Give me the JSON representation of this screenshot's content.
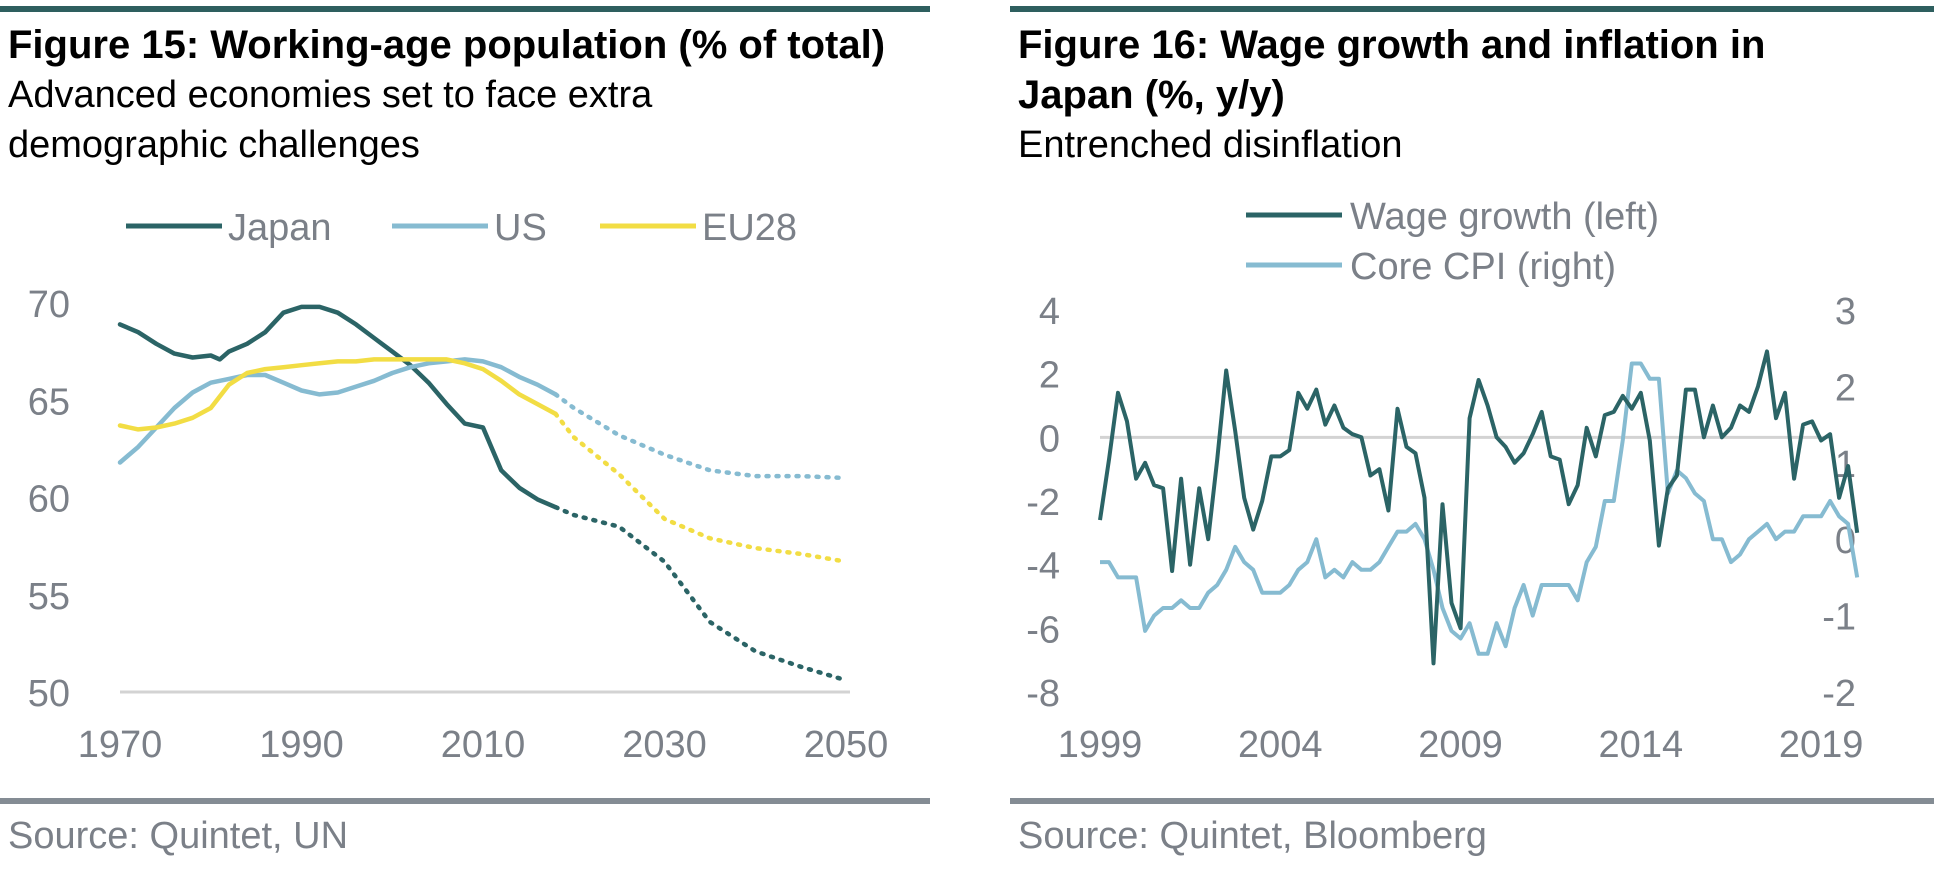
{
  "colors": {
    "japan": "#2b6466",
    "us": "#86bbd1",
    "eu28": "#f2dd44",
    "wage": "#2b6466",
    "cpi": "#86bbd1",
    "axis_text": "#7b8088",
    "zero_line": "#d3d3d3",
    "rule_top": "#2e5f5f",
    "rule_bottom": "#848c94"
  },
  "left": {
    "title": "Figure 15: Working-age population (% of total)",
    "subtitle_line1": "Advanced economies set to face extra",
    "subtitle_line2": "demographic challenges",
    "source": "Source: Quintet, UN"
  },
  "right": {
    "title_line1": "Figure 16: Wage growth and inflation in",
    "title_line2": "Japan (%, y/y)",
    "subtitle": "Entrenched disinflation",
    "source": "Source: Quintet, Bloomberg"
  },
  "chart_data": [
    {
      "type": "line",
      "title": "Figure 15: Working-age population (% of total)",
      "xlim": [
        1970,
        2050
      ],
      "ylim": [
        50,
        70
      ],
      "xticks": [
        "1970",
        "1990",
        "2010",
        "2030",
        "2050"
      ],
      "yticks": [
        "50",
        "55",
        "60",
        "65",
        "70"
      ],
      "legend": "top",
      "projection_from": 2018,
      "series": [
        {
          "name": "Japan",
          "x": [
            1970,
            1972,
            1974,
            1976,
            1978,
            1980,
            1981,
            1982,
            1984,
            1986,
            1988,
            1990,
            1992,
            1994,
            1996,
            1998,
            2000,
            2002,
            2004,
            2006,
            2008,
            2010,
            2012,
            2014,
            2016,
            2018,
            2020,
            2025,
            2030,
            2035,
            2040,
            2045,
            2050
          ],
          "y": [
            68.9,
            68.5,
            67.9,
            67.4,
            67.2,
            67.3,
            67.1,
            67.5,
            67.9,
            68.5,
            69.5,
            69.8,
            69.8,
            69.5,
            68.9,
            68.2,
            67.5,
            66.8,
            65.9,
            64.8,
            63.8,
            63.6,
            61.4,
            60.5,
            59.9,
            59.5,
            59.1,
            58.5,
            56.7,
            53.6,
            52.1,
            51.3,
            50.6
          ]
        },
        {
          "name": "US",
          "x": [
            1970,
            1972,
            1974,
            1976,
            1978,
            1980,
            1982,
            1984,
            1986,
            1988,
            1990,
            1992,
            1994,
            1996,
            1998,
            2000,
            2002,
            2004,
            2006,
            2008,
            2010,
            2012,
            2014,
            2016,
            2018,
            2020,
            2025,
            2030,
            2035,
            2040,
            2045,
            2050
          ],
          "y": [
            61.8,
            62.6,
            63.6,
            64.6,
            65.4,
            65.9,
            66.1,
            66.3,
            66.3,
            65.9,
            65.5,
            65.3,
            65.4,
            65.7,
            66.0,
            66.4,
            66.7,
            66.9,
            67.0,
            67.1,
            67.0,
            66.7,
            66.2,
            65.8,
            65.3,
            64.6,
            63.2,
            62.2,
            61.4,
            61.1,
            61.1,
            61.0
          ]
        },
        {
          "name": "EU28",
          "x": [
            1970,
            1972,
            1974,
            1976,
            1978,
            1980,
            1982,
            1984,
            1986,
            1988,
            1990,
            1992,
            1994,
            1996,
            1998,
            2000,
            2002,
            2004,
            2006,
            2008,
            2010,
            2012,
            2014,
            2016,
            2018,
            2020,
            2025,
            2030,
            2035,
            2040,
            2045,
            2050
          ],
          "y": [
            63.7,
            63.5,
            63.6,
            63.8,
            64.1,
            64.6,
            65.8,
            66.4,
            66.6,
            66.7,
            66.8,
            66.9,
            67.0,
            67.0,
            67.1,
            67.1,
            67.1,
            67.1,
            67.1,
            66.9,
            66.6,
            66.0,
            65.3,
            64.8,
            64.3,
            63.1,
            61.2,
            58.9,
            57.9,
            57.4,
            57.1,
            56.7
          ]
        }
      ]
    },
    {
      "type": "line",
      "title": "Figure 16: Wage growth and inflation in Japan (%, y/y)",
      "xlim": [
        1999,
        2020.8
      ],
      "ylim_left": [
        -8,
        4
      ],
      "ylim_right": [
        -2,
        3
      ],
      "xticks": [
        "1999",
        "2004",
        "2009",
        "2014",
        "2019"
      ],
      "yticks_left": [
        "4",
        "2",
        "0",
        "-2",
        "-4",
        "-6",
        "-8"
      ],
      "yticks_right": [
        "3",
        "2",
        "1",
        "0",
        "-1",
        "-2"
      ],
      "legend": "top",
      "zero_line": true,
      "series": [
        {
          "name": "Wage growth (left)",
          "axis": "left",
          "x": [
            1999.0,
            1999.25,
            1999.5,
            1999.75,
            2000.0,
            2000.25,
            2000.5,
            2000.75,
            2001.0,
            2001.25,
            2001.5,
            2001.75,
            2002.0,
            2002.25,
            2002.5,
            2002.75,
            2003.0,
            2003.25,
            2003.5,
            2003.75,
            2004.0,
            2004.25,
            2004.5,
            2004.75,
            2005.0,
            2005.25,
            2005.5,
            2005.75,
            2006.0,
            2006.25,
            2006.5,
            2006.75,
            2007.0,
            2007.25,
            2007.5,
            2007.75,
            2008.0,
            2008.25,
            2008.5,
            2008.75,
            2009.0,
            2009.25,
            2009.5,
            2009.75,
            2010.0,
            2010.25,
            2010.5,
            2010.75,
            2011.0,
            2011.25,
            2011.5,
            2011.75,
            2012.0,
            2012.25,
            2012.5,
            2012.75,
            2013.0,
            2013.25,
            2013.5,
            2013.75,
            2014.0,
            2014.25,
            2014.5,
            2014.75,
            2015.0,
            2015.25,
            2015.5,
            2015.75,
            2016.0,
            2016.25,
            2016.5,
            2016.75,
            2017.0,
            2017.25,
            2017.5,
            2017.75,
            2018.0,
            2018.25,
            2018.5,
            2018.75,
            2019.0,
            2019.25,
            2019.5,
            2019.75,
            2020.0
          ],
          "y": [
            -2.6,
            -0.7,
            1.4,
            0.5,
            -1.3,
            -0.8,
            -1.5,
            -1.6,
            -4.2,
            -1.3,
            -4.0,
            -1.6,
            -3.2,
            -0.7,
            2.1,
            0.2,
            -1.9,
            -2.9,
            -2.0,
            -0.6,
            -0.6,
            -0.4,
            1.4,
            0.9,
            1.5,
            0.4,
            1.0,
            0.3,
            0.1,
            0.0,
            -1.2,
            -1.0,
            -2.3,
            0.9,
            -0.3,
            -0.5,
            -1.9,
            -7.1,
            -2.1,
            -5.2,
            -6.0,
            0.6,
            1.8,
            1.0,
            0.0,
            -0.3,
            -0.8,
            -0.5,
            0.1,
            0.8,
            -0.6,
            -0.7,
            -2.1,
            -1.5,
            0.3,
            -0.6,
            0.7,
            0.8,
            1.3,
            0.9,
            1.4,
            -0.1,
            -3.4,
            -1.6,
            -1.2,
            1.5,
            1.5,
            0.0,
            1.0,
            0.0,
            0.3,
            1.0,
            0.8,
            1.6,
            2.7,
            0.6,
            1.4,
            -1.3,
            0.4,
            0.5,
            -0.1,
            0.1,
            -1.9,
            -0.9,
            -3.0
          ]
        },
        {
          "name": "Core CPI (right)",
          "axis": "right",
          "x": [
            1999.0,
            1999.25,
            1999.5,
            1999.75,
            2000.0,
            2000.25,
            2000.5,
            2000.75,
            2001.0,
            2001.25,
            2001.5,
            2001.75,
            2002.0,
            2002.25,
            2002.5,
            2002.75,
            2003.0,
            2003.25,
            2003.5,
            2003.75,
            2004.0,
            2004.25,
            2004.5,
            2004.75,
            2005.0,
            2005.25,
            2005.5,
            2005.75,
            2006.0,
            2006.25,
            2006.5,
            2006.75,
            2007.0,
            2007.25,
            2007.5,
            2007.75,
            2008.0,
            2008.25,
            2008.5,
            2008.75,
            2009.0,
            2009.25,
            2009.5,
            2009.75,
            2010.0,
            2010.25,
            2010.5,
            2010.75,
            2011.0,
            2011.25,
            2011.5,
            2011.75,
            2012.0,
            2012.25,
            2012.5,
            2012.75,
            2013.0,
            2013.25,
            2013.5,
            2013.75,
            2014.0,
            2014.25,
            2014.5,
            2014.75,
            2015.0,
            2015.25,
            2015.5,
            2015.75,
            2016.0,
            2016.25,
            2016.5,
            2016.75,
            2017.0,
            2017.25,
            2017.5,
            2017.75,
            2018.0,
            2018.25,
            2018.5,
            2018.75,
            2019.0,
            2019.25,
            2019.5,
            2019.75,
            2020.0
          ],
          "y": [
            -0.3,
            -0.3,
            -0.5,
            -0.5,
            -0.5,
            -1.2,
            -1.0,
            -0.9,
            -0.9,
            -0.8,
            -0.9,
            -0.9,
            -0.7,
            -0.6,
            -0.4,
            -0.1,
            -0.3,
            -0.4,
            -0.7,
            -0.7,
            -0.7,
            -0.6,
            -0.4,
            -0.3,
            0.0,
            -0.5,
            -0.4,
            -0.5,
            -0.3,
            -0.4,
            -0.4,
            -0.3,
            -0.1,
            0.1,
            0.1,
            0.2,
            0.0,
            -0.4,
            -0.9,
            -1.2,
            -1.3,
            -1.1,
            -1.5,
            -1.5,
            -1.1,
            -1.4,
            -0.9,
            -0.6,
            -1.0,
            -0.6,
            -0.6,
            -0.6,
            -0.6,
            -0.8,
            -0.3,
            -0.1,
            0.5,
            0.5,
            1.3,
            2.3,
            2.3,
            2.1,
            2.1,
            0.6,
            0.9,
            0.8,
            0.6,
            0.5,
            0.0,
            0.0,
            -0.3,
            -0.2,
            0.0,
            0.1,
            0.2,
            0.0,
            0.1,
            0.1,
            0.3,
            0.3,
            0.3,
            0.5,
            0.3,
            0.2,
            -0.5
          ]
        }
      ]
    }
  ]
}
